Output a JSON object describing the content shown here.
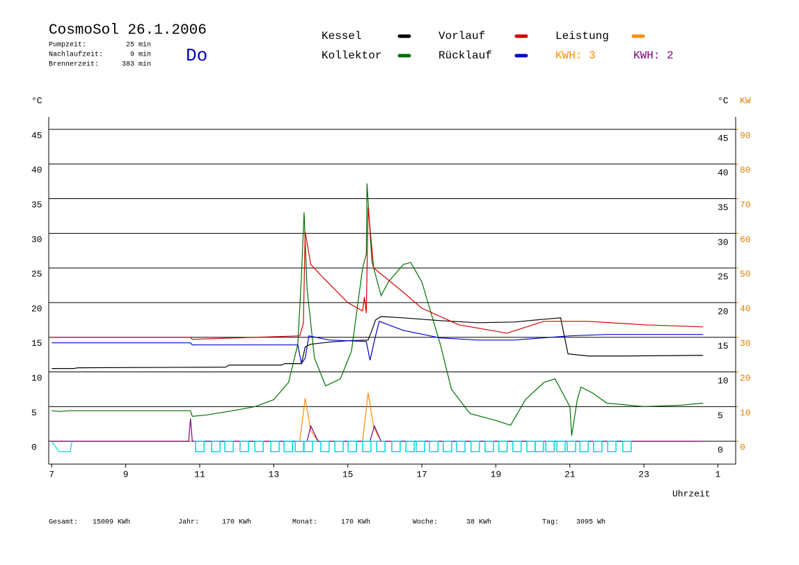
{
  "chart_data": {
    "type": "line",
    "title": "CosmoSol 26.1.2006",
    "info": [
      {
        "label": "Pumpzeit:",
        "value": "25 min"
      },
      {
        "label": "Nachlaufzeit:",
        "value": "9 min"
      },
      {
        "label": "Brennerzeit:",
        "value": "383 min"
      }
    ],
    "day": "Do",
    "annotations": [
      {
        "text": "KWH: 3",
        "color": "#ff8c00"
      },
      {
        "text": "KWH: 2",
        "color": "#800080"
      }
    ],
    "ylabel": "°C",
    "y2label_left": "°C",
    "y2label": "KW",
    "xlabel": "Uhrzeit",
    "xlim": [
      6.92,
      25.48
    ],
    "xticks": [
      7,
      9,
      11,
      13,
      15,
      17,
      19,
      21,
      23,
      {
        "value": 25,
        "label": "1"
      }
    ],
    "ylim": [
      -3.3,
      46.8
    ],
    "yticks": [
      0,
      5,
      10,
      15,
      20,
      25,
      30,
      35,
      40,
      45
    ],
    "y2lim": [
      -6.6,
      93.6
    ],
    "y2ticks": [
      0,
      10,
      20,
      30,
      40,
      50,
      60,
      70,
      80,
      90
    ],
    "grid": true,
    "series": [
      {
        "name": "Kessel",
        "color": "#000000",
        "x": [
          7,
          7.6,
          7.7,
          11.7,
          11.8,
          13.2,
          13.3,
          13.75,
          13.85,
          14.0,
          14.5,
          15.0,
          15.55,
          15.65,
          15.75,
          15.9,
          16.5,
          17.5,
          18.5,
          19.5,
          20.3,
          20.75,
          20.95,
          21.5,
          22.5,
          24.6
        ],
        "values": [
          10.5,
          10.5,
          10.6,
          10.7,
          11.0,
          11.0,
          11.2,
          11.2,
          13.6,
          14.0,
          14.3,
          14.5,
          14.6,
          16.0,
          17.5,
          18.0,
          17.8,
          17.4,
          17.1,
          17.2,
          17.6,
          17.8,
          12.6,
          12.3,
          12.3,
          12.4
        ]
      },
      {
        "name": "Vorlauf",
        "color": "#d00000",
        "x": [
          7,
          10.75,
          10.8,
          13.7,
          13.8,
          13.85,
          14.0,
          14.3,
          15.0,
          15.4,
          15.45,
          15.5,
          15.55,
          15.7,
          16.5,
          17.0,
          18.0,
          19.3,
          20.3,
          20.75,
          21.5,
          23.0,
          24.6
        ],
        "values": [
          15.0,
          15.0,
          14.7,
          15.2,
          17.0,
          30.2,
          25.5,
          23.8,
          20.0,
          18.8,
          20.8,
          18.5,
          33.8,
          25.0,
          21.5,
          19.2,
          16.8,
          15.6,
          17.3,
          17.3,
          17.3,
          16.8,
          16.5
        ]
      },
      {
        "name": "Leistung",
        "color": "#ff8c00",
        "axis": "y2",
        "x": [
          7,
          13.7,
          13.85,
          14.0,
          14.2,
          15.4,
          15.55,
          15.7,
          15.9,
          24.6
        ],
        "values": [
          0,
          0,
          12.4,
          3,
          0,
          0,
          14,
          4,
          0,
          0
        ]
      },
      {
        "name": "Kollektor",
        "color": "#007000",
        "x": [
          7,
          7.2,
          7.5,
          10.75,
          10.8,
          11.2,
          12.0,
          12.5,
          13.0,
          13.4,
          13.65,
          13.75,
          13.82,
          13.9,
          14.1,
          14.4,
          14.8,
          15.1,
          15.4,
          15.5,
          15.52,
          15.65,
          15.9,
          16.1,
          16.5,
          16.7,
          17.0,
          17.5,
          17.8,
          18.3,
          19.0,
          19.4,
          19.8,
          20.3,
          20.6,
          21.0,
          21.05,
          21.2,
          21.3,
          21.6,
          22.0,
          23.0,
          24.0,
          24.6
        ],
        "values": [
          4.4,
          4.3,
          4.4,
          4.4,
          3.6,
          3.8,
          4.5,
          5.0,
          6.0,
          8.5,
          14,
          24,
          33.0,
          22,
          12,
          8.0,
          9.0,
          13,
          25,
          27,
          37.2,
          26,
          21,
          23,
          25.5,
          25.8,
          23,
          14,
          7.5,
          4.0,
          3.0,
          2.3,
          6.0,
          8.5,
          9.0,
          5.0,
          0.8,
          6.0,
          7.8,
          7.0,
          5.5,
          5.0,
          5.2,
          5.5
        ]
      },
      {
        "name": "Rücklauf",
        "color": "#0000d0",
        "x": [
          7,
          10.75,
          10.8,
          13.65,
          13.75,
          13.85,
          13.95,
          14.5,
          15.5,
          15.6,
          15.75,
          15.85,
          16.5,
          17.5,
          18.5,
          19.5,
          20.5,
          21.0,
          22.0,
          24.6
        ],
        "values": [
          14.2,
          14.2,
          13.9,
          13.9,
          11.2,
          12.0,
          15.2,
          14.6,
          14.4,
          11.7,
          15.2,
          17.3,
          16.0,
          14.9,
          14.6,
          14.6,
          15.0,
          15.2,
          15.4,
          15.4
        ]
      },
      {
        "color": "#800080",
        "axis": "y2",
        "x": [
          7,
          10.7,
          10.75,
          10.8,
          13.9,
          14.0,
          14.2,
          15.6,
          15.72,
          15.9,
          24.6
        ],
        "values": [
          0,
          0,
          6.6,
          0,
          0,
          4.4,
          0,
          0,
          4.4,
          0,
          0
        ]
      },
      {
        "color": "#00d8e0",
        "x": [
          7,
          7.2,
          7.5,
          7.55,
          24.6
        ],
        "values": [
          0,
          -1.5,
          -1.5,
          0,
          0
        ]
      }
    ],
    "markers": {
      "color": "#00d8e0",
      "x": [
        10.89,
        11.32,
        11.68,
        12.09,
        12.49,
        12.92,
        13.28,
        13.58,
        13.82,
        14.27,
        14.65,
        15.01,
        15.4,
        15.78,
        16.19,
        16.57,
        16.85,
        17.21,
        17.58,
        17.94,
        18.33,
        18.71,
        19.08,
        19.46,
        19.84,
        20.06,
        20.35,
        20.65,
        20.93,
        21.27,
        21.64,
        22.02,
        22.43
      ]
    },
    "footer": [
      {
        "label": "Gesamt:",
        "value": "15009 KWh"
      },
      {
        "label": "Jahr:",
        "value": "170 KWh"
      },
      {
        "label": "Monat:",
        "value": "170 KWh"
      },
      {
        "label": "Woche:",
        "value": "38 KWh"
      },
      {
        "label": "Tag:",
        "value": "3095 Wh"
      }
    ]
  }
}
